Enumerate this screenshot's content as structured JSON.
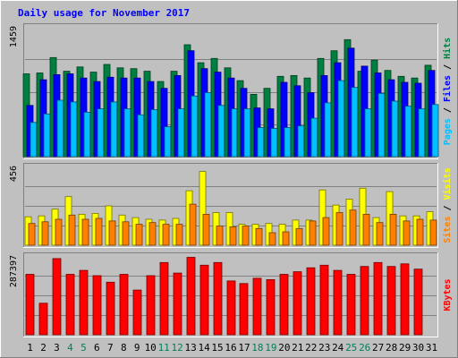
{
  "chart_data": {
    "type": "bar",
    "title": "Daily usage for November 2017",
    "categories": [
      "1",
      "2",
      "3",
      "4",
      "5",
      "6",
      "7",
      "8",
      "9",
      "10",
      "11",
      "12",
      "13",
      "14",
      "15",
      "16",
      "17",
      "18",
      "19",
      "20",
      "21",
      "22",
      "23",
      "24",
      "25",
      "26",
      "27",
      "28",
      "29",
      "30",
      "31"
    ],
    "weekend_days": [
      "4",
      "5",
      "11",
      "12",
      "18",
      "19",
      "25",
      "26"
    ],
    "panels": [
      {
        "id": "hits-files-pages",
        "max_label": "1459",
        "ylim": [
          0,
          1520
        ],
        "right_labels": [
          {
            "text": "Pages",
            "color": "#00c0ff"
          },
          {
            "text": "Files",
            "color": "#0000ff"
          },
          {
            "text": "Hits",
            "color": "#008040"
          }
        ],
        "series": [
          {
            "name": "Hits",
            "color": "#008040",
            "values": [
              970,
              980,
              1160,
              1000,
              1050,
              990,
              1080,
              1040,
              1030,
              1000,
              880,
              1000,
              1310,
              1100,
              1150,
              1040,
              890,
              730,
              800,
              940,
              950,
              920,
              1150,
              1240,
              1370,
              1000,
              1130,
              1010,
              940,
              920,
              1070
            ]
          },
          {
            "name": "Files",
            "color": "#0000ff",
            "values": [
              600,
              900,
              960,
              970,
              920,
              880,
              930,
              920,
              920,
              880,
              800,
              950,
              1240,
              1030,
              990,
              920,
              800,
              570,
              560,
              870,
              830,
              750,
              950,
              1100,
              1270,
              1060,
              980,
              900,
              870,
              860,
              1010
            ]
          },
          {
            "name": "Pages",
            "color": "#00c0ff",
            "values": [
              400,
              500,
              660,
              640,
              520,
              560,
              640,
              560,
              490,
              550,
              350,
              560,
              710,
              750,
              600,
              560,
              560,
              340,
              330,
              340,
              360,
              450,
              630,
              890,
              810,
              560,
              740,
              650,
              590,
              560,
              610
            ]
          }
        ]
      },
      {
        "id": "visits-sites",
        "max_label": "456",
        "ylim": [
          0,
          470
        ],
        "right_labels": [
          {
            "text": "Sites",
            "color": "#ff8000"
          },
          {
            "text": "Visits",
            "color": "#ffff00"
          }
        ],
        "series": [
          {
            "name": "Visits",
            "color": "#ffff00",
            "values": [
              170,
              175,
              215,
              290,
              185,
              190,
              235,
              180,
              165,
              155,
              150,
              160,
              325,
              440,
              195,
              195,
              125,
              125,
              130,
              125,
              150,
              150,
              330,
              240,
              275,
              340,
              165,
              320,
              175,
              175,
              200
            ]
          },
          {
            "name": "Sites",
            "color": "#ff8000",
            "values": [
              130,
              140,
              155,
              180,
              155,
              160,
              145,
              140,
              125,
              135,
              125,
              125,
              245,
              185,
              115,
              110,
              115,
              100,
              75,
              80,
              100,
              145,
              165,
              195,
              210,
              185,
              135,
              185,
              145,
              155,
              150
            ]
          }
        ]
      },
      {
        "id": "kbytes",
        "max_label": "287397",
        "ylim": [
          0,
          300000
        ],
        "right_labels": [
          {
            "text": "KBytes",
            "color": "#ff0000"
          }
        ],
        "series": [
          {
            "name": "KBytes",
            "color": "#ff0000",
            "values": [
              230000,
              120000,
              290000,
              230000,
              245000,
              225000,
              200000,
              230000,
              170000,
              225000,
              275000,
              235000,
              295000,
              265000,
              275000,
              205000,
              195000,
              215000,
              210000,
              230000,
              240000,
              255000,
              265000,
              245000,
              230000,
              260000,
              275000,
              260000,
              270000,
              250000,
              0
            ]
          }
        ]
      }
    ]
  }
}
